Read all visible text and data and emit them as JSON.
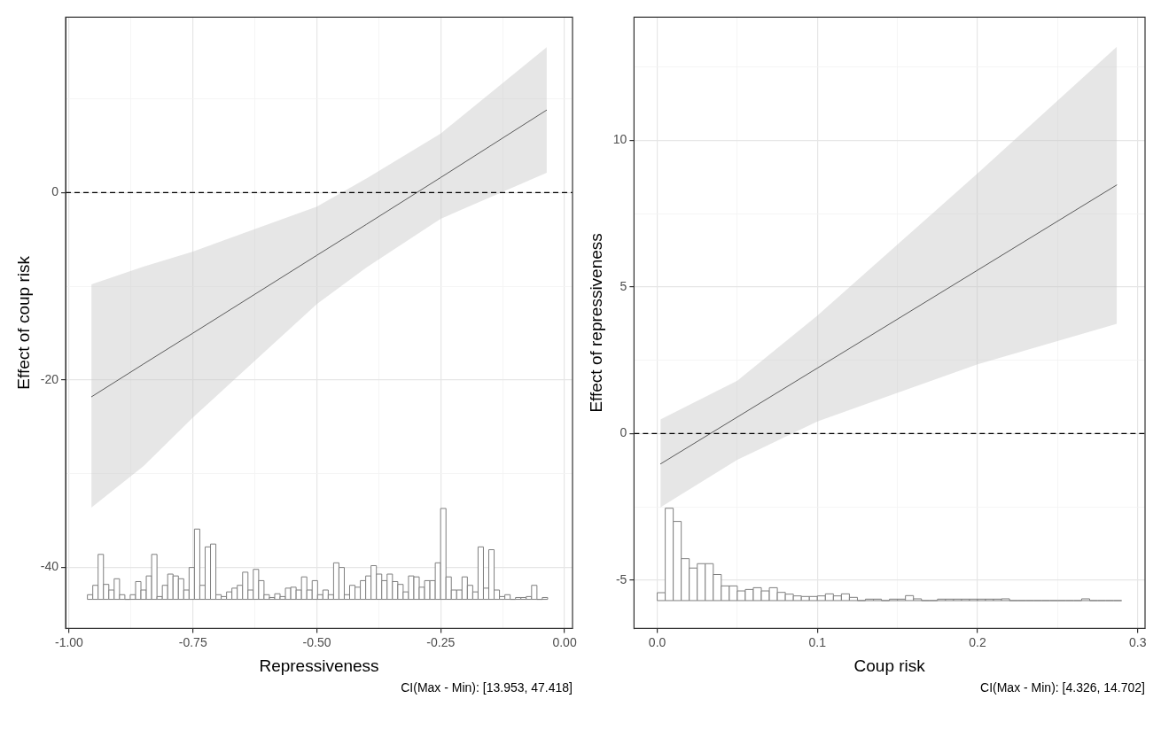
{
  "chart_data": [
    {
      "type": "line",
      "xlabel": "Repressiveness",
      "ylabel": "Effect of coup risk",
      "xlim": [
        -1.007,
        0.016
      ],
      "xticks": [
        {
          "value": -1,
          "label": "-1.00"
        },
        {
          "value": -0.875,
          "label": null
        },
        {
          "value": -0.75,
          "label": "-0.75"
        },
        {
          "value": -0.625,
          "label": null
        },
        {
          "value": -0.5,
          "label": "-0.50"
        },
        {
          "value": -0.375,
          "label": null
        },
        {
          "value": -0.25,
          "label": "-0.25"
        },
        {
          "value": -0.125,
          "label": null
        },
        {
          "value": 0,
          "label": "0.00"
        }
      ],
      "ylim": [
        -46.5,
        18.7
      ],
      "yticks": [
        -40,
        {
          "value": -30,
          "label": null
        },
        -20,
        {
          "value": -10,
          "label": null
        },
        0,
        {
          "value": 10,
          "label": null
        }
      ],
      "grid": true,
      "ref_lines": [
        {
          "axis": "y",
          "value": 0,
          "line_style": "dashed",
          "color": "#000000"
        }
      ],
      "annotations": [
        "CI(Max - Min): [13.953, 47.418]"
      ],
      "series": [
        {
          "color": "#000000",
          "x": [
            -0.955,
            -0.85,
            -0.75,
            -0.5,
            -0.4,
            -0.25,
            -0.036
          ],
          "values": [
            -21.8,
            -18.3,
            -15.0,
            -6.7,
            -3.4,
            1.6,
            8.8
          ],
          "lower": [
            -33.6,
            -29.2,
            -24.0,
            -11.9,
            -8.0,
            -2.8,
            2.1
          ],
          "upper": [
            -9.8,
            -7.9,
            -6.3,
            -1.5,
            1.5,
            6.3,
            15.5
          ]
        },
        {
          "type": "histogram",
          "color": "#7f7f7f",
          "bins": [
            -0.963,
            -0.9522,
            -0.9414,
            -0.9306,
            -0.9198,
            -0.909,
            -0.8982,
            -0.8874,
            -0.8766,
            -0.8658,
            -0.855,
            -0.8442,
            -0.8334,
            -0.8226,
            -0.8118,
            -0.801,
            -0.7902,
            -0.7794,
            -0.7686,
            -0.7578,
            -0.747,
            -0.7362,
            -0.7254,
            -0.7146,
            -0.7038,
            -0.693,
            -0.6822,
            -0.6714,
            -0.6606,
            -0.6498,
            -0.639,
            -0.6282,
            -0.6174,
            -0.6066,
            -0.5958,
            -0.585,
            -0.5742,
            -0.5634,
            -0.5526,
            -0.5418,
            -0.531,
            -0.5202,
            -0.5094,
            -0.4986,
            -0.4878,
            -0.477,
            -0.4662,
            -0.4554,
            -0.4446,
            -0.4338,
            -0.423,
            -0.4122,
            -0.4014,
            -0.3906,
            -0.3798,
            -0.369,
            -0.3582,
            -0.3474,
            -0.3366,
            -0.3258,
            -0.315,
            -0.3042,
            -0.2934,
            -0.2826,
            -0.2718,
            -0.261,
            -0.2502,
            -0.2394,
            -0.2286,
            -0.2178,
            -0.207,
            -0.1962,
            -0.1854,
            -0.1746,
            -0.1638,
            -0.153,
            -0.1422,
            -0.1314,
            -0.1206,
            -0.1098,
            -0.099,
            -0.0882,
            -0.0774,
            -0.0666,
            -0.0558,
            -0.045,
            -0.0342
          ],
          "values": [
            0.5,
            1.5,
            4.8,
            1.6,
            1.0,
            2.2,
            0.5,
            0,
            0.5,
            1.9,
            1.0,
            2.5,
            4.8,
            0.3,
            1.5,
            2.7,
            2.5,
            2.2,
            1.0,
            3.4,
            7.5,
            1.5,
            5.6,
            5.9,
            0.5,
            0.3,
            0.8,
            1.2,
            1.5,
            2.9,
            1.0,
            3.2,
            2.0,
            0.5,
            0.2,
            0.6,
            0.3,
            1.2,
            1.3,
            1.0,
            2.4,
            1.0,
            2.0,
            0.5,
            1.0,
            0.5,
            3.9,
            3.4,
            0.5,
            1.5,
            1.3,
            2.0,
            2.5,
            3.6,
            2.7,
            2.0,
            2.7,
            1.9,
            1.6,
            0.8,
            2.5,
            2.4,
            1.3,
            2.0,
            2.0,
            3.9,
            9.7,
            2.4,
            1.0,
            1.0,
            2.4,
            1.5,
            0.8,
            5.6,
            1.2,
            5.3,
            1.0,
            0.3,
            0.5,
            0,
            0.2,
            0.2,
            0.3,
            1.5,
            0,
            0.2
          ],
          "base": [
            -43.4,
            -43.4,
            -43.4,
            -43.4,
            -43.4,
            -43.4,
            -43.4,
            -43.4,
            -43.4,
            -43.4,
            -43.4,
            -43.4,
            -43.4,
            -43.4,
            -43.4,
            -43.4,
            -43.4,
            -43.4,
            -43.4,
            -43.4,
            -43.4,
            -43.4,
            -43.4,
            -43.4,
            -43.4,
            -43.4,
            -43.4,
            -43.4,
            -43.4,
            -43.4,
            -43.4,
            -43.4,
            -43.4,
            -43.4,
            -43.4,
            -43.4,
            -43.4,
            -43.4,
            -43.4,
            -43.4,
            -43.4,
            -43.4,
            -43.4,
            -43.4,
            -43.4,
            -43.4,
            -43.4,
            -43.4,
            -43.4,
            -43.4,
            -43.4,
            -43.4,
            -43.4,
            -43.4,
            -43.4,
            -43.4,
            -43.4,
            -43.4,
            -43.4,
            -43.4,
            -43.4,
            -43.4,
            -43.4,
            -43.4,
            -43.4,
            -43.4,
            -43.4,
            -43.4,
            -43.4,
            -43.4,
            -43.4,
            -43.4,
            -43.4,
            -43.4,
            -43.4,
            -43.4,
            -43.4,
            -43.4,
            -43.4,
            -43.4,
            -43.4,
            -43.4,
            -43.4,
            -43.4,
            -43.4,
            -43.4
          ]
        }
      ]
    },
    {
      "type": "line",
      "xlabel": "Coup risk",
      "ylabel": "Effect of repressiveness",
      "xlim": [
        -0.0145,
        0.3046
      ],
      "xticks": [
        {
          "value": 0,
          "label": "0.0"
        },
        {
          "value": 0.05,
          "label": null
        },
        {
          "value": 0.1,
          "label": "0.1"
        },
        {
          "value": 0.15,
          "label": null
        },
        {
          "value": 0.2,
          "label": "0.2"
        },
        {
          "value": 0.25,
          "label": null
        },
        {
          "value": 0.3,
          "label": "0.3"
        }
      ],
      "ylim": [
        -6.65,
        14.2
      ],
      "yticks": [
        -5,
        {
          "value": -2.5,
          "label": null
        },
        0,
        {
          "value": 2.5,
          "label": null
        },
        5,
        {
          "value": 7.5,
          "label": null
        },
        10,
        {
          "value": 12.5,
          "label": null
        }
      ],
      "grid": true,
      "ref_lines": [
        {
          "axis": "y",
          "value": 0,
          "line_style": "dashed",
          "color": "#000000"
        }
      ],
      "annotations": [
        "CI(Max - Min): [4.326, 14.702]"
      ],
      "series": [
        {
          "color": "#000000",
          "x": [
            0.002,
            0.05,
            0.1,
            0.2,
            0.287
          ],
          "values": [
            -1.04,
            0.56,
            2.23,
            5.57,
            8.48
          ],
          "lower": [
            -2.52,
            -0.9,
            0.41,
            2.36,
            3.74
          ],
          "upper": [
            0.48,
            1.8,
            4.02,
            8.87,
            13.19
          ]
        },
        {
          "type": "histogram",
          "color": "#7f7f7f",
          "bins": [
            0,
            0.005,
            0.01,
            0.015,
            0.02,
            0.025,
            0.03,
            0.035,
            0.04,
            0.045,
            0.05,
            0.055,
            0.06,
            0.065,
            0.07,
            0.075,
            0.08,
            0.085,
            0.09,
            0.095,
            0.1,
            0.105,
            0.11,
            0.115,
            0.12,
            0.125,
            0.13,
            0.135,
            0.14,
            0.145,
            0.15,
            0.155,
            0.16,
            0.165,
            0.17,
            0.175,
            0.18,
            0.185,
            0.19,
            0.195,
            0.2,
            0.205,
            0.21,
            0.215,
            0.22,
            0.225,
            0.23,
            0.235,
            0.24,
            0.245,
            0.25,
            0.255,
            0.26,
            0.265,
            0.27,
            0.275,
            0.28,
            0.285,
            0.29
          ],
          "values": [
            0.27,
            3.15,
            2.7,
            1.43,
            1.11,
            1.26,
            1.26,
            0.89,
            0.5,
            0.5,
            0.33,
            0.38,
            0.44,
            0.33,
            0.44,
            0.28,
            0.22,
            0.16,
            0.14,
            0.14,
            0.16,
            0.23,
            0.16,
            0.23,
            0.11,
            0,
            0.05,
            0.05,
            0,
            0.05,
            0.05,
            0.17,
            0.06,
            0,
            0,
            0.05,
            0.05,
            0.05,
            0.05,
            0.05,
            0.05,
            0.05,
            0.05,
            0.06,
            0,
            0,
            0,
            0,
            0,
            0,
            0,
            0,
            0,
            0.06,
            0,
            0,
            0,
            0
          ],
          "base": [
            -5.7,
            -5.7,
            -5.7,
            -5.7,
            -5.7,
            -5.7,
            -5.7,
            -5.7,
            -5.7,
            -5.7,
            -5.7,
            -5.7,
            -5.7,
            -5.7,
            -5.7,
            -5.7,
            -5.7,
            -5.7,
            -5.7,
            -5.7,
            -5.7,
            -5.7,
            -5.7,
            -5.7,
            -5.7,
            -5.7,
            -5.7,
            -5.7,
            -5.7,
            -5.7,
            -5.7,
            -5.7,
            -5.7,
            -5.7,
            -5.7,
            -5.7,
            -5.7,
            -5.7,
            -5.7,
            -5.7,
            -5.7,
            -5.7,
            -5.7,
            -5.7,
            -5.7,
            -5.7,
            -5.7,
            -5.7,
            -5.7,
            -5.7,
            -5.7,
            -5.7,
            -5.7,
            -5.7,
            -5.7,
            -5.7,
            -5.7,
            -5.7
          ]
        }
      ]
    }
  ]
}
